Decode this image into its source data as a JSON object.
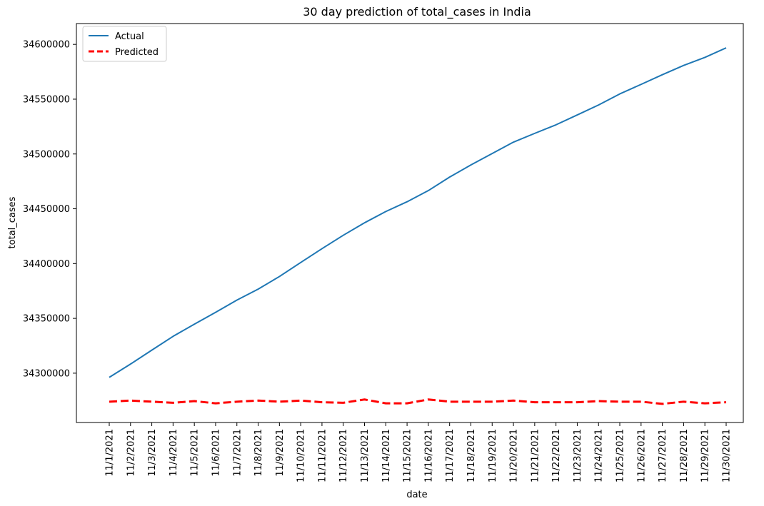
{
  "chart_data": {
    "type": "line",
    "title": "30 day prediction of total_cases in India",
    "xlabel": "date",
    "ylabel": "total_cases",
    "categories": [
      "11/1/2021",
      "11/2/2021",
      "11/3/2021",
      "11/4/2021",
      "11/5/2021",
      "11/6/2021",
      "11/7/2021",
      "11/8/2021",
      "11/9/2021",
      "11/10/2021",
      "11/11/2021",
      "11/12/2021",
      "11/13/2021",
      "11/14/2021",
      "11/15/2021",
      "11/16/2021",
      "11/17/2021",
      "11/18/2021",
      "11/19/2021",
      "11/20/2021",
      "11/21/2021",
      "11/22/2021",
      "11/23/2021",
      "11/24/2021",
      "11/25/2021",
      "11/26/2021",
      "11/27/2021",
      "11/28/2021",
      "11/29/2021",
      "11/30/2021"
    ],
    "yticks": [
      34300000,
      34350000,
      34400000,
      34450000,
      34500000,
      34550000,
      34600000
    ],
    "ylim": [
      34255000,
      34619000
    ],
    "series": [
      {
        "name": "Actual",
        "color": "#1f77b4",
        "style": "solid",
        "values": [
          34296200,
          34308300,
          34321000,
          34333600,
          34344700,
          34355500,
          34366700,
          34376700,
          34388200,
          34401000,
          34413600,
          34425800,
          34437200,
          34447500,
          34456400,
          34466600,
          34478900,
          34490000,
          34500400,
          34510800,
          34518800,
          34526600,
          34535600,
          34544700,
          34554800,
          34563500,
          34572300,
          34580800,
          34588100,
          34596800
        ]
      },
      {
        "name": "Predicted",
        "color": "#ff0000",
        "style": "dashed",
        "values": [
          34274000,
          34275000,
          34274000,
          34273000,
          34274500,
          34272500,
          34274000,
          34275000,
          34274000,
          34275000,
          34273500,
          34273000,
          34276000,
          34272500,
          34272500,
          34276000,
          34274000,
          34274000,
          34274000,
          34275000,
          34273500,
          34273500,
          34273500,
          34274500,
          34274000,
          34274000,
          34272000,
          34274000,
          34272500,
          34273500
        ]
      }
    ],
    "legend": {
      "position": "top-left"
    },
    "grid": false
  }
}
